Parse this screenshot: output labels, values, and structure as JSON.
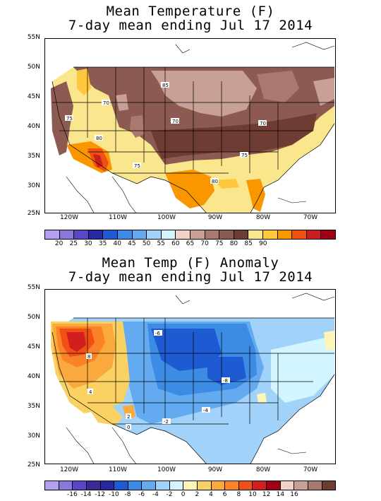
{
  "top_map": {
    "title_line1": "Mean Temperature (F)",
    "title_line2": "7-day mean ending Jul 17 2014",
    "lat_labels": [
      "55N",
      "50N",
      "45N",
      "40N",
      "35N",
      "30N",
      "25N"
    ],
    "lon_labels": [
      "120W",
      "110W",
      "100W",
      "90W",
      "80W",
      "70W"
    ],
    "contour_labels": [
      "85",
      "75",
      "70",
      "80",
      "70",
      "75",
      "75",
      "80",
      "70"
    ],
    "colorbar": {
      "colors": [
        "#b4a0f0",
        "#8c78dc",
        "#5a46c8",
        "#2828a0",
        "#1e5ad2",
        "#3c8ce6",
        "#64aaf0",
        "#a0d2fa",
        "#d2f5ff",
        "#f0d2c8",
        "#c8a096",
        "#aa786e",
        "#8c5a50",
        "#6e3c32",
        "#fae68c",
        "#ffc83c",
        "#fa9600",
        "#f05014",
        "#c81e1e",
        "#a00014"
      ],
      "labels": [
        "20",
        "25",
        "30",
        "35",
        "40",
        "45",
        "50",
        "55",
        "60",
        "65",
        "70",
        "75",
        "80",
        "85",
        "90"
      ]
    }
  },
  "bottom_map": {
    "title_line1": "Mean Temp (F) Anomaly",
    "title_line2": "7-day mean ending Jul 17 2014",
    "lat_labels": [
      "55N",
      "50N",
      "45N",
      "40N",
      "35N",
      "30N",
      "25N"
    ],
    "lon_labels": [
      "120W",
      "110W",
      "100W",
      "90W",
      "80W",
      "70W"
    ],
    "contour_labels": [
      "-6",
      "8",
      "4",
      "-8",
      "-4",
      "-2",
      "2",
      "0"
    ],
    "colorbar": {
      "colors": [
        "#b4a0f0",
        "#8c78dc",
        "#5a46c8",
        "#3c2896",
        "#2828a0",
        "#1e5ad2",
        "#3c8ce6",
        "#64aaf0",
        "#a0d2fa",
        "#d2f5ff",
        "#fff5b4",
        "#fad264",
        "#faaa3c",
        "#fa8228",
        "#f05014",
        "#d21e1e",
        "#a00014",
        "#f0d2c8",
        "#c8a096",
        "#aa786e",
        "#6e3c32"
      ],
      "labels": [
        "-16",
        "-14",
        "-12",
        "-10",
        "-8",
        "-6",
        "-4",
        "-2",
        "0",
        "2",
        "4",
        "6",
        "8",
        "10",
        "12",
        "14",
        "16"
      ]
    }
  }
}
